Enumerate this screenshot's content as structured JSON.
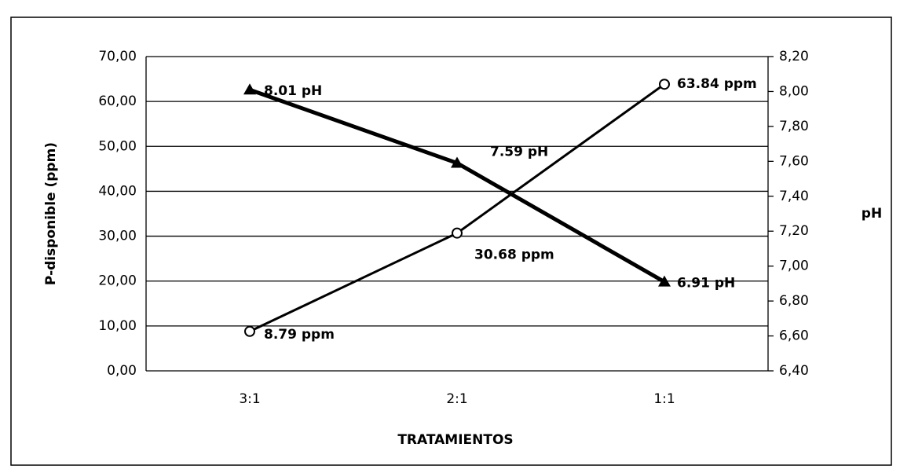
{
  "chart_data": {
    "type": "line",
    "categories": [
      "3:1",
      "2:1",
      "1:1"
    ],
    "series": [
      {
        "color": "#000000",
        "marker": "open-circle",
        "axis": "y",
        "values": [
          8.79,
          30.68,
          63.84
        ],
        "value_labels": [
          "8.79 ppm",
          "30.68 ppm",
          "63.84 ppm"
        ]
      },
      {
        "color": "#000000",
        "marker": "filled-triangle",
        "axis": "y2",
        "values": [
          8.01,
          7.59,
          6.91
        ],
        "value_labels": [
          "8.01 pH",
          "7.59 pH",
          "6.91 pH"
        ]
      }
    ],
    "x_label": "TRATAMIENTOS",
    "y_label": "P-disponible (ppm)",
    "y2_label": "pH",
    "ylim": [
      0,
      70
    ],
    "yticks": [
      {
        "value": 0,
        "label": "0,00"
      },
      {
        "value": 10,
        "label": "10,00"
      },
      {
        "value": 20,
        "label": "20,00"
      },
      {
        "value": 30,
        "label": "30,00"
      },
      {
        "value": 40,
        "label": "40,00"
      },
      {
        "value": 50,
        "label": "50,00"
      },
      {
        "value": 60,
        "label": "60,00"
      },
      {
        "value": 70,
        "label": "70,00"
      }
    ],
    "y2lim": [
      6.4,
      8.2
    ],
    "y2ticks": [
      {
        "value": 6.4,
        "label": "6,40"
      },
      {
        "value": 6.6,
        "label": "6,60"
      },
      {
        "value": 6.8,
        "label": "6,80"
      },
      {
        "value": 7.0,
        "label": "7,00"
      },
      {
        "value": 7.2,
        "label": "7,20"
      },
      {
        "value": 7.4,
        "label": "7,40"
      },
      {
        "value": 7.6,
        "label": "7,60"
      },
      {
        "value": 7.8,
        "label": "7,80"
      },
      {
        "value": 8.0,
        "label": "8,00"
      },
      {
        "value": 8.2,
        "label": "8,20"
      }
    ],
    "grid": true
  }
}
